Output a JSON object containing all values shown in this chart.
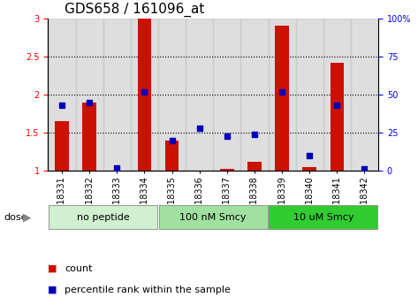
{
  "title": "GDS658 / 161096_at",
  "samples": [
    "GSM18331",
    "GSM18332",
    "GSM18333",
    "GSM18334",
    "GSM18335",
    "GSM18336",
    "GSM18337",
    "GSM18338",
    "GSM18339",
    "GSM18340",
    "GSM18341",
    "GSM18342"
  ],
  "count_values": [
    1.65,
    1.9,
    1.0,
    3.0,
    1.4,
    1.0,
    1.03,
    1.12,
    2.9,
    1.05,
    2.42,
    1.0
  ],
  "percentile_values": [
    43,
    45,
    2,
    52,
    20,
    28,
    23,
    24,
    52,
    10,
    43,
    1
  ],
  "groups": [
    {
      "label": "no peptide",
      "start": 0,
      "end": 4,
      "color": "#d0f0d0"
    },
    {
      "label": "100 nM Smcy",
      "start": 4,
      "end": 8,
      "color": "#a0e0a0"
    },
    {
      "label": "10 uM Smcy",
      "start": 8,
      "end": 12,
      "color": "#30cc30"
    }
  ],
  "ylim_left": [
    1.0,
    3.0
  ],
  "ylim_right": [
    0,
    100
  ],
  "yticks_left": [
    1.0,
    1.5,
    2.0,
    2.5,
    3.0
  ],
  "yticks_right": [
    0,
    25,
    50,
    75,
    100
  ],
  "bar_color": "#cc1100",
  "dot_color": "#0000bb",
  "bar_width": 0.5,
  "dot_size": 25,
  "background_color": "white",
  "dose_label": "dose",
  "legend_count": "count",
  "legend_percentile": "percentile rank within the sample",
  "title_fontsize": 11,
  "tick_fontsize": 7,
  "label_fontsize": 8,
  "group_label_fontsize": 8,
  "xlabel_gray_color": "#c8c8c8"
}
